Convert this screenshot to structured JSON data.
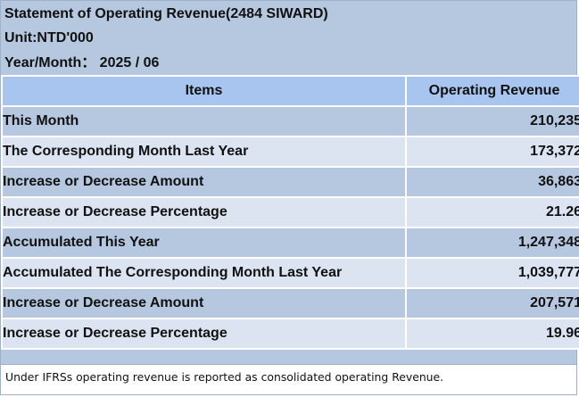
{
  "header": {
    "title": "Statement of Operating Revenue(2484 SIWARD)",
    "unit": "Unit:NTD'000",
    "period": "Year/Month： 2025 / 06"
  },
  "table": {
    "columns": [
      "Items",
      "Operating Revenue"
    ],
    "rows": [
      {
        "label": "This Month",
        "value": "210,235"
      },
      {
        "label": "The Corresponding Month Last Year",
        "value": "173,372"
      },
      {
        "label": "Increase or Decrease Amount",
        "value": "36,863"
      },
      {
        "label": "Increase or Decrease Percentage",
        "value": "21.26"
      },
      {
        "label": "Accumulated This Year",
        "value": "1,247,348"
      },
      {
        "label": "Accumulated The Corresponding Month Last Year",
        "value": "1,039,777"
      },
      {
        "label": "Increase or Decrease Amount",
        "value": "207,571"
      },
      {
        "label": "Increase or Decrease Percentage",
        "value": "19.96"
      }
    ]
  },
  "footnote": "Under IFRSs operating revenue is reported as consolidated operating Revenue.",
  "colors": {
    "panel_background": "#b6c8e0",
    "header_row": "#a7c5ee",
    "row_dark": "#b6c8e0",
    "row_light": "#dbe4f0"
  }
}
